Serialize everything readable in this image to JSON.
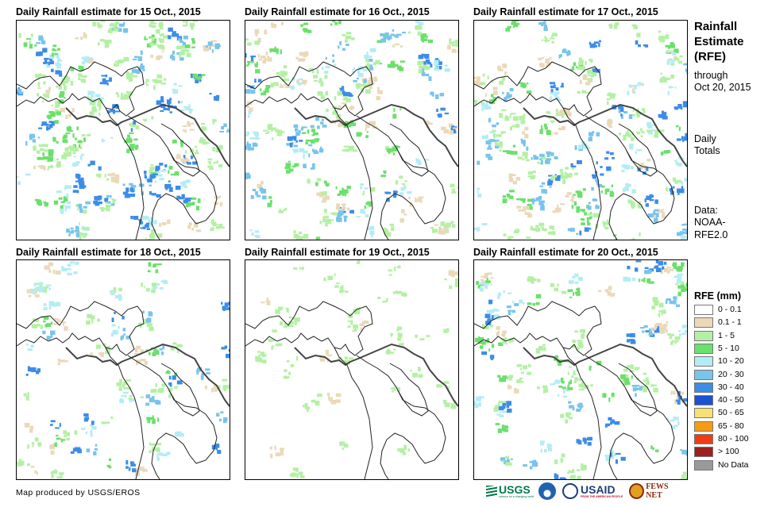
{
  "panels": [
    {
      "title": "Daily Rainfall estimate for 15 Oct., 2015"
    },
    {
      "title": "Daily Rainfall estimate for 16 Oct., 2015"
    },
    {
      "title": "Daily Rainfall estimate for 17 Oct., 2015"
    },
    {
      "title": "Daily Rainfall estimate for 18 Oct., 2015"
    },
    {
      "title": "Daily Rainfall estimate for 19 Oct., 2015"
    },
    {
      "title": "Daily Rainfall estimate for 20 Oct., 2015"
    }
  ],
  "side": {
    "title_lines": [
      "Rainfall",
      "Estimate",
      "(RFE)"
    ],
    "through": "through",
    "through_date": "Oct 20, 2015",
    "daily": "Daily",
    "totals": "Totals",
    "data_label": "Data:",
    "data_source_1": "NOAA-",
    "data_source_2": "RFE2.0"
  },
  "legend": {
    "title": "RFE (mm)",
    "items": [
      {
        "label": "0 - 0.1",
        "color": "#ffffff"
      },
      {
        "label": "0.1 - 1",
        "color": "#ead9b9"
      },
      {
        "label": "1 - 5",
        "color": "#b4f0a4"
      },
      {
        "label": "5 - 10",
        "color": "#6be06b"
      },
      {
        "label": "10 - 20",
        "color": "#b4ecf4"
      },
      {
        "label": "20 - 30",
        "color": "#78c4ec"
      },
      {
        "label": "30 - 40",
        "color": "#3c8ce8"
      },
      {
        "label": "40 - 50",
        "color": "#1e50d2"
      },
      {
        "label": "50 - 65",
        "color": "#f8e078"
      },
      {
        "label": "65 - 80",
        "color": "#f89a14"
      },
      {
        "label": "80 - 100",
        "color": "#f03c14"
      },
      {
        "label": "> 100",
        "color": "#a01e1e"
      },
      {
        "label": "No Data",
        "color": "#9a9a9a"
      }
    ]
  },
  "credit": "Map produced by USGS/EROS",
  "logos": {
    "usgs": "USGS",
    "usgs_tagline": "science for a changing world",
    "noaa": "NOAA",
    "usaid": "USAID",
    "usaid_tagline": "FROM THE AMERICAN PEOPLE",
    "fewsnet": "FEWS NET"
  }
}
